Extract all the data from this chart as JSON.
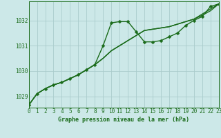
{
  "title": "Graphe pression niveau de la mer (hPa)",
  "bg_color": "#cce8e8",
  "grid_color": "#aacccc",
  "line_color": "#1a6b1a",
  "xlim": [
    0,
    23
  ],
  "ylim": [
    1028.55,
    1032.75
  ],
  "yticks": [
    1029,
    1030,
    1031,
    1032
  ],
  "xticks": [
    0,
    1,
    2,
    3,
    4,
    5,
    6,
    7,
    8,
    9,
    10,
    11,
    12,
    13,
    14,
    15,
    16,
    17,
    18,
    19,
    20,
    21,
    22,
    23
  ],
  "series": [
    {
      "y": [
        1028.65,
        1029.1,
        1029.3,
        1029.45,
        1029.55,
        1029.7,
        1029.85,
        1030.05,
        1030.25,
        1031.0,
        1031.9,
        1031.95,
        1031.95,
        1031.55,
        1031.15,
        1031.15,
        1031.2,
        1031.35,
        1031.5,
        1031.8,
        1032.0,
        1032.15,
        1032.55,
        1032.65
      ],
      "marker": true,
      "lw": 1.0
    },
    {
      "y": [
        1028.65,
        1029.1,
        1029.3,
        1029.45,
        1029.55,
        1029.7,
        1029.85,
        1030.05,
        1030.25,
        1030.5,
        1030.8,
        1031.0,
        1031.2,
        1031.4,
        1031.6,
        1031.65,
        1031.7,
        1031.75,
        1031.85,
        1031.95,
        1032.05,
        1032.2,
        1032.38,
        1032.65
      ],
      "marker": false,
      "lw": 1.0
    },
    {
      "y": [
        1028.65,
        1029.1,
        1029.3,
        1029.45,
        1029.55,
        1029.7,
        1029.85,
        1030.05,
        1030.25,
        1030.5,
        1030.8,
        1031.0,
        1031.2,
        1031.4,
        1031.6,
        1031.65,
        1031.7,
        1031.75,
        1031.85,
        1031.95,
        1032.05,
        1032.25,
        1032.45,
        1032.65
      ],
      "marker": false,
      "lw": 1.0
    }
  ],
  "ylabel_fontsize": 5.5,
  "xlabel_fontsize": 6.0,
  "tick_fontsize": 5.5,
  "marker_size": 2.5,
  "figwidth": 3.2,
  "figheight": 2.0,
  "dpi": 100
}
